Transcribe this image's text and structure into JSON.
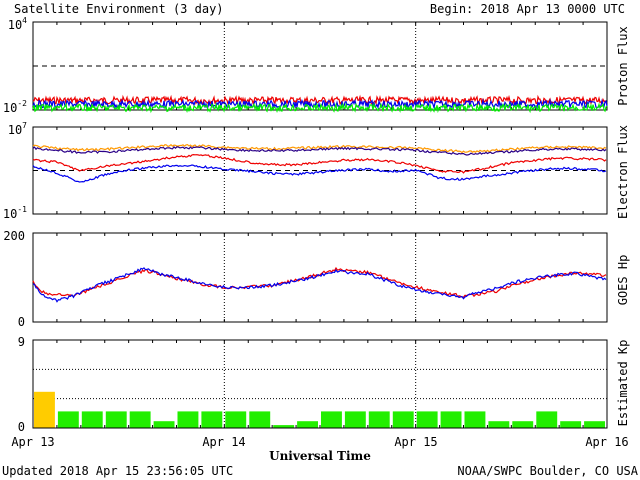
{
  "header": {
    "title": "Satellite Environment (3 day)",
    "begin": "Begin:  2018 Apr 13 0000 UTC"
  },
  "footer": {
    "updated": "Updated 2018 Apr 15 23:56:05 UTC",
    "credit": "NOAA/SWPC Boulder, CO USA"
  },
  "x_axis": {
    "label": "Universal Time",
    "ticks": [
      "Apr 13",
      "Apr 14",
      "Apr 15",
      "Apr 16"
    ]
  },
  "colors": {
    "red": "#ee0000",
    "blue": "#0000ee",
    "green": "#00ee00",
    "orange": "#ff9900",
    "navy": "#2a0088",
    "kp_green": "#22ee00",
    "kp_yellow": "#ffcc00"
  },
  "chart_data": [
    {
      "type": "line",
      "panel": "proton",
      "ylabel": "Proton Flux",
      "yscale": "log",
      "ylim": [
        0.01,
        10000
      ],
      "yticks": [
        {
          "base": "10",
          "exp": "4"
        },
        {
          "base": "10",
          "exp": "-2"
        }
      ],
      "threshold": 10,
      "x": [
        "Apr 13",
        "Apr 14",
        "Apr 15",
        "Apr 16"
      ],
      "series": [
        {
          "color": "red",
          "values": [
            0.045,
            0.045,
            0.045,
            0.045
          ]
        },
        {
          "color": "blue",
          "values": [
            0.025,
            0.025,
            0.025,
            0.025
          ]
        },
        {
          "color": "green",
          "values": [
            0.014,
            0.014,
            0.014,
            0.014
          ]
        }
      ]
    },
    {
      "type": "line",
      "panel": "electron",
      "ylabel": "Electron Flux",
      "yscale": "log",
      "ylim": [
        0.1,
        10000000
      ],
      "yticks": [
        {
          "base": "10",
          "exp": "7"
        },
        {
          "base": "10",
          "exp": "-1"
        }
      ],
      "threshold": 1000,
      "x_hours": [
        0,
        3,
        6,
        9,
        12,
        15,
        18,
        21,
        24,
        27,
        30,
        33,
        36,
        39,
        42,
        45,
        48,
        51,
        54,
        57,
        60,
        63,
        66,
        69,
        72
      ],
      "series": [
        {
          "color": "orange",
          "values": [
            180000,
            110000,
            80000,
            90000,
            120000,
            170000,
            200000,
            190000,
            140000,
            110000,
            100000,
            115000,
            140000,
            160000,
            150000,
            130000,
            120000,
            75000,
            55000,
            65000,
            90000,
            130000,
            150000,
            140000,
            110000
          ]
        },
        {
          "color": "navy",
          "values": [
            120000,
            70000,
            45000,
            52000,
            70000,
            100000,
            130000,
            120000,
            90000,
            70000,
            65000,
            72000,
            90000,
            110000,
            100000,
            85000,
            75000,
            45000,
            32000,
            38000,
            55000,
            80000,
            100000,
            90000,
            72000
          ]
        },
        {
          "color": "red",
          "values": [
            9000,
            6000,
            900,
            2500,
            4500,
            9000,
            18000,
            28000,
            14000,
            6000,
            3500,
            3200,
            5500,
            9000,
            10000,
            6500,
            3000,
            900,
            700,
            1800,
            5000,
            9000,
            14000,
            12000,
            9000
          ]
        },
        {
          "color": "blue",
          "values": [
            2500,
            600,
            80,
            400,
            1100,
            2000,
            3000,
            2400,
            1300,
            900,
            550,
            450,
            700,
            1100,
            1300,
            800,
            1100,
            200,
            150,
            320,
            600,
            1100,
            1600,
            1400,
            900
          ]
        }
      ]
    },
    {
      "type": "line",
      "panel": "goes_hp",
      "ylabel": "GOES Hp",
      "ylim": [
        0,
        200
      ],
      "yticks": [
        "200",
        "0"
      ],
      "x_hours": [
        0,
        1,
        2,
        3,
        4,
        5,
        6,
        8,
        10,
        12,
        14,
        16,
        18,
        20,
        22,
        24,
        26,
        30,
        34,
        38,
        42,
        46,
        50,
        52,
        54,
        56,
        58,
        60,
        64,
        68,
        72
      ],
      "series": [
        {
          "color": "red",
          "values": [
            90,
            70,
            62,
            62,
            60,
            58,
            65,
            78,
            90,
            105,
            115,
            108,
            98,
            90,
            82,
            78,
            78,
            82,
            98,
            118,
            112,
            88,
            70,
            64,
            58,
            63,
            68,
            82,
            100,
            110,
            105
          ]
        },
        {
          "color": "blue",
          "values": [
            88,
            65,
            52,
            48,
            52,
            58,
            65,
            82,
            94,
            108,
            120,
            108,
            100,
            92,
            84,
            78,
            76,
            82,
            96,
            114,
            108,
            82,
            65,
            60,
            55,
            68,
            75,
            88,
            102,
            110,
            95
          ]
        }
      ]
    },
    {
      "type": "bar",
      "panel": "kp",
      "ylabel": "Estimated Kp",
      "ylim": [
        0,
        9
      ],
      "yticks": [
        "9",
        "0"
      ],
      "bin_hours": 3,
      "values": [
        3.7,
        1.7,
        1.7,
        1.7,
        1.7,
        0.7,
        1.7,
        1.7,
        1.7,
        1.7,
        0.3,
        0.7,
        1.7,
        1.7,
        1.7,
        1.7,
        1.7,
        1.7,
        1.7,
        0.7,
        0.7,
        1.7,
        0.7,
        0.7
      ],
      "colors": [
        "kp_yellow",
        "kp_green",
        "kp_green",
        "kp_green",
        "kp_green",
        "kp_green",
        "kp_green",
        "kp_green",
        "kp_green",
        "kp_green",
        "kp_green",
        "kp_green",
        "kp_green",
        "kp_green",
        "kp_green",
        "kp_green",
        "kp_green",
        "kp_green",
        "kp_green",
        "kp_green",
        "kp_green",
        "kp_green",
        "kp_green",
        "kp_green"
      ]
    }
  ]
}
